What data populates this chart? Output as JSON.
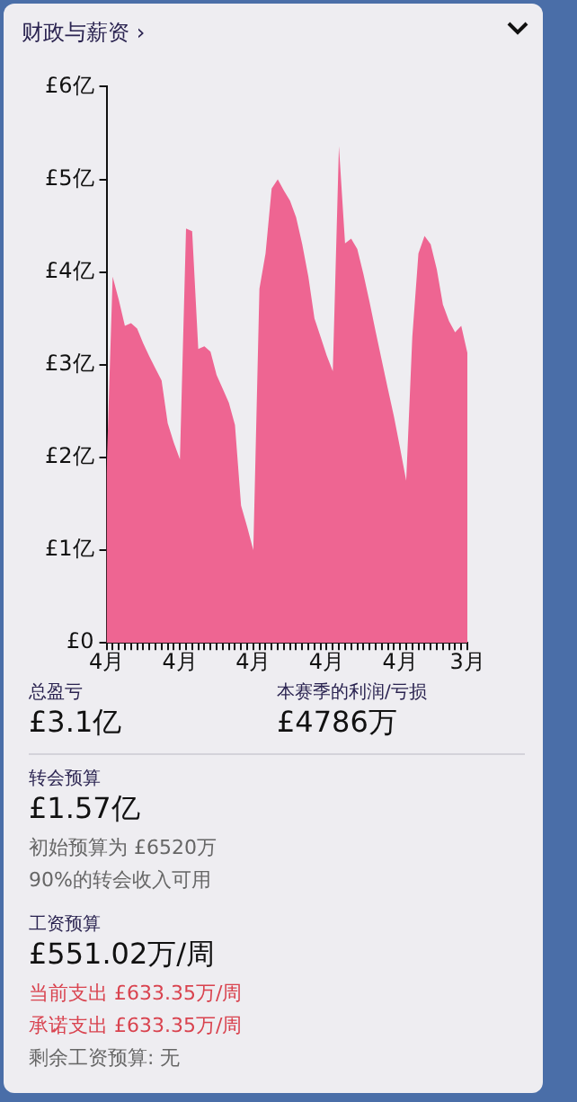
{
  "chart_data": {
    "type": "area",
    "title": "财政与薪资 ›",
    "categories": [
      "4月",
      null,
      null,
      null,
      null,
      null,
      null,
      null,
      null,
      null,
      null,
      null,
      "4月",
      null,
      null,
      null,
      null,
      null,
      null,
      null,
      null,
      null,
      null,
      null,
      "4月",
      null,
      null,
      null,
      null,
      null,
      null,
      null,
      null,
      null,
      null,
      null,
      "4月",
      null,
      null,
      null,
      null,
      null,
      null,
      null,
      null,
      null,
      null,
      null,
      "4月",
      null,
      null,
      null,
      null,
      null,
      null,
      null,
      null,
      null,
      null,
      "3月"
    ],
    "series": [
      {
        "color": "#ee6592",
        "values": [
          1.83,
          3.95,
          3.7,
          3.42,
          3.45,
          3.39,
          3.23,
          3.09,
          2.96,
          2.83,
          2.37,
          2.16,
          1.98,
          4.47,
          4.44,
          3.17,
          3.2,
          3.14,
          2.89,
          2.74,
          2.59,
          2.35,
          1.48,
          1.25,
          1.0,
          3.82,
          4.2,
          4.9,
          5.0,
          4.88,
          4.77,
          4.59,
          4.3,
          3.95,
          3.5,
          3.3,
          3.1,
          2.93,
          5.36,
          4.31,
          4.36,
          4.25,
          3.98,
          3.68,
          3.36,
          3.05,
          2.74,
          2.44,
          2.1,
          1.75,
          3.3,
          4.2,
          4.39,
          4.3,
          4.03,
          3.65,
          3.47,
          3.35,
          3.42,
          3.13
        ]
      }
    ],
    "ylim": [
      0,
      6
    ],
    "yticks": [
      {
        "value": 0,
        "label": "£0"
      },
      {
        "value": 1,
        "label": "£1亿"
      },
      {
        "value": 2,
        "label": "£2亿"
      },
      {
        "value": 3,
        "label": "£3亿"
      },
      {
        "value": 4,
        "label": "£4亿"
      },
      {
        "value": 5,
        "label": "£5亿"
      },
      {
        "value": 6,
        "label": "£6亿"
      }
    ],
    "grid": false,
    "legend": false,
    "marker": "none",
    "annotations": [
      "总盈亏",
      "£3.1亿",
      "本赛季的利润/亏损",
      "£4786万",
      "转会预算",
      "£1.57亿",
      "初始预算为 £6520万",
      "90%的转会收入可用",
      "工资预算",
      "£551.02万/周",
      "当前支出 £633.35万/周",
      "承诺支出 £633.35万/周",
      "剩余工资预算: 无"
    ]
  }
}
